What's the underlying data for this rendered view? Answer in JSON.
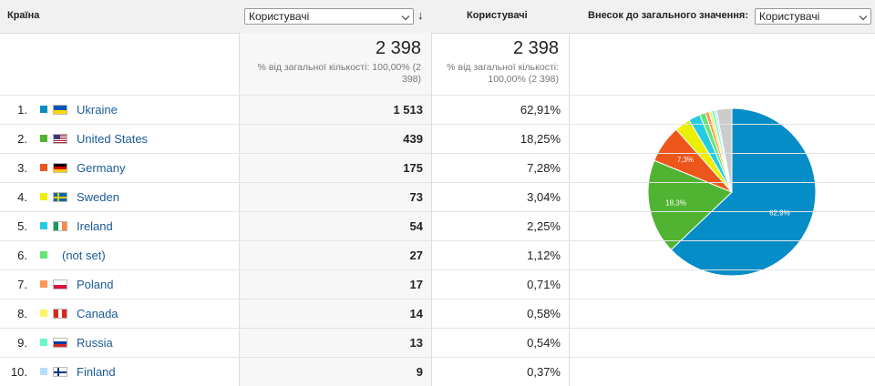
{
  "header": {
    "country": "Країна",
    "metric_select": "Користувачі",
    "metric": "Користувачі",
    "contribution": "Внесок до загального значення:",
    "contribution_select": "Користувачі"
  },
  "totals": {
    "users": "2 398",
    "users_note": "% від загальної кількості: 100,00% (2 398)",
    "share": "2 398",
    "share_note": "% від загальної кількості: 100,00% (2 398)"
  },
  "table": {
    "rows": [
      {
        "rank": "1.",
        "name": "Ukraine",
        "users": "1 513",
        "share": "62,91%"
      },
      {
        "rank": "2.",
        "name": "United States",
        "users": "439",
        "share": "18,25%"
      },
      {
        "rank": "3.",
        "name": "Germany",
        "users": "175",
        "share": "7,28%"
      },
      {
        "rank": "4.",
        "name": "Sweden",
        "users": "73",
        "share": "3,04%"
      },
      {
        "rank": "5.",
        "name": "Ireland",
        "users": "54",
        "share": "2,25%"
      },
      {
        "rank": "6.",
        "name": "(not set)",
        "users": "27",
        "share": "1,12%"
      },
      {
        "rank": "7.",
        "name": "Poland",
        "users": "17",
        "share": "0,71%"
      },
      {
        "rank": "8.",
        "name": "Canada",
        "users": "14",
        "share": "0,58%"
      },
      {
        "rank": "9.",
        "name": "Russia",
        "users": "13",
        "share": "0,54%"
      },
      {
        "rank": "10.",
        "name": "Finland",
        "users": "9",
        "share": "0,37%"
      }
    ]
  },
  "pie": {
    "values": [
      62.91,
      18.25,
      7.28,
      3.04,
      2.25,
      1.12,
      0.71,
      0.58,
      0.54,
      0.37,
      2.95
    ],
    "value_labels": [
      "62,9%",
      "18,3%",
      "7,3%",
      null,
      null,
      null,
      null,
      null,
      null,
      null,
      null
    ],
    "colors": [
      "#058dc7",
      "#50b432",
      "#ed561b",
      "#edef00",
      "#24cbe5",
      "#64e572",
      "#ff9655",
      "#fff263",
      "#6af9c4",
      "#b2deff",
      "#cccccc"
    ]
  }
}
